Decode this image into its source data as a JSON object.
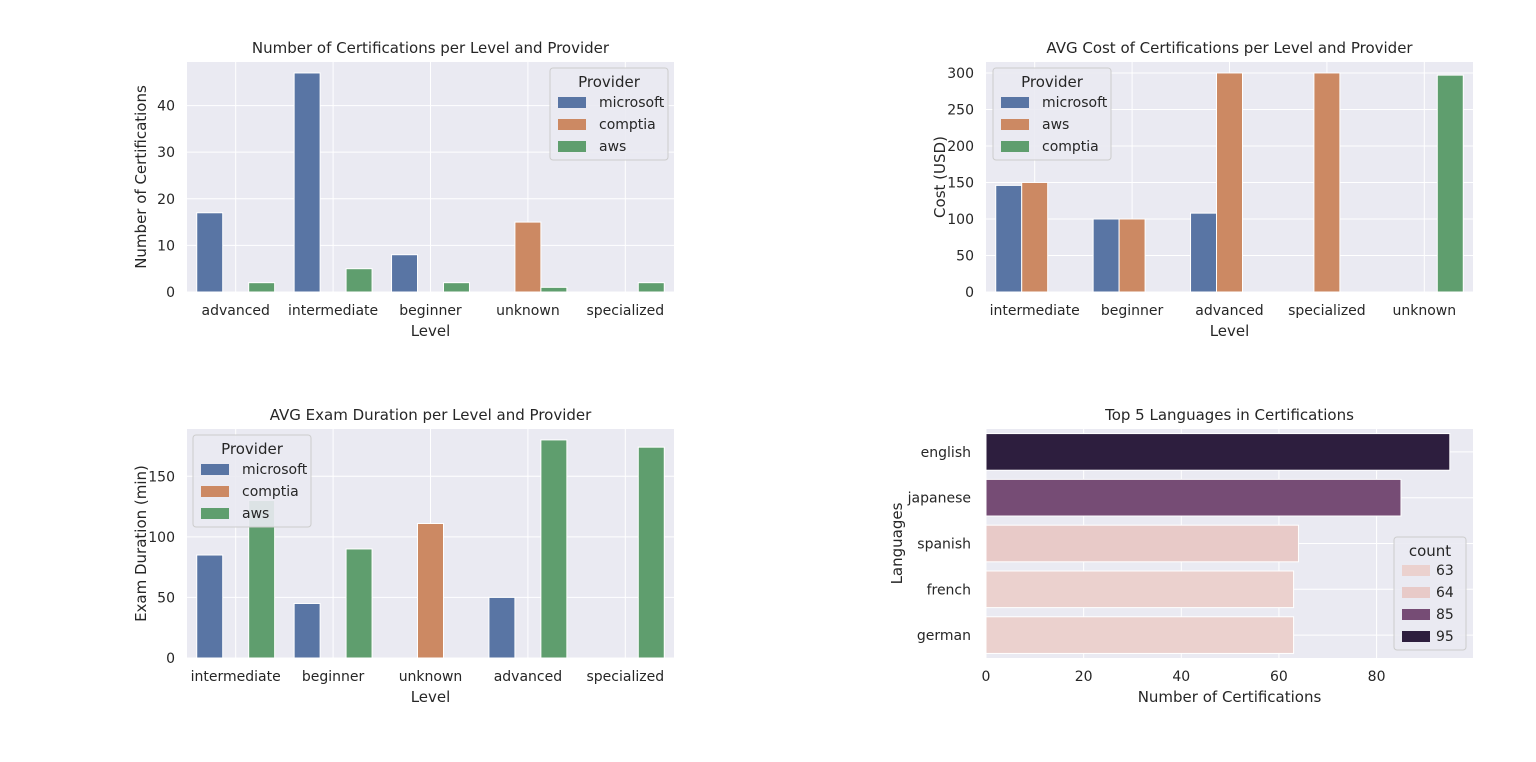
{
  "colors": {
    "panel_bg": "#EAEAF2",
    "grid": "#FFFFFF",
    "microsoft": "#5975A4",
    "comptia": "#CC8963",
    "aws": "#5F9E6E",
    "legend_bg": "#EAEAF2",
    "legend_border": "#CCCCCC"
  },
  "chart_data": [
    {
      "type": "bar",
      "title": "Number of Certifications per Level and Provider",
      "xlabel": "Level",
      "ylabel": "Number of Certifications",
      "categories": [
        "advanced",
        "intermediate",
        "beginner",
        "unknown",
        "specialized"
      ],
      "series": [
        {
          "name": "microsoft",
          "color_key": "microsoft",
          "values": [
            17,
            47,
            8,
            0,
            0
          ]
        },
        {
          "name": "comptia",
          "color_key": "comptia",
          "values": [
            0,
            0,
            0,
            15,
            0
          ]
        },
        {
          "name": "aws",
          "color_key": "aws",
          "values": [
            2,
            5,
            2,
            1,
            2
          ]
        }
      ],
      "ylim": [
        0,
        49.35
      ],
      "yticks": [
        0,
        10,
        20,
        30,
        40
      ],
      "legend_title": "Provider",
      "legend_position": "top-right",
      "grid": true
    },
    {
      "type": "bar",
      "title": "AVG Cost of Certifications per Level and Provider",
      "xlabel": "Level",
      "ylabel": "Cost (USD)",
      "categories": [
        "intermediate",
        "beginner",
        "advanced",
        "specialized",
        "unknown"
      ],
      "series": [
        {
          "name": "microsoft",
          "color_key": "microsoft",
          "values": [
            146,
            100,
            108,
            0,
            0
          ]
        },
        {
          "name": "aws",
          "color_key": "comptia",
          "values": [
            150,
            100,
            300,
            300,
            0
          ]
        },
        {
          "name": "comptia",
          "color_key": "aws",
          "values": [
            0,
            0,
            0,
            0,
            297
          ]
        }
      ],
      "ylim": [
        0,
        315
      ],
      "yticks": [
        0,
        50,
        100,
        150,
        200,
        250,
        300
      ],
      "legend_title": "Provider",
      "legend_position": "top-left",
      "grid": true
    },
    {
      "type": "bar",
      "title": "AVG Exam Duration per Level and Provider",
      "xlabel": "Level",
      "ylabel": "Exam Duration (min)",
      "categories": [
        "intermediate",
        "beginner",
        "unknown",
        "advanced",
        "specialized"
      ],
      "series": [
        {
          "name": "microsoft",
          "color_key": "microsoft",
          "values": [
            85,
            45,
            0,
            50,
            0
          ]
        },
        {
          "name": "comptia",
          "color_key": "comptia",
          "values": [
            0,
            0,
            111,
            0,
            0
          ]
        },
        {
          "name": "aws",
          "color_key": "aws",
          "values": [
            130,
            90,
            0,
            180,
            174
          ]
        }
      ],
      "ylim": [
        0,
        189
      ],
      "yticks": [
        0,
        50,
        100,
        150
      ],
      "legend_title": "Provider",
      "legend_position": "top-left",
      "grid": true
    },
    {
      "type": "bar",
      "orientation": "horizontal",
      "title": "Top 5 Languages in Certifications",
      "xlabel": "Number of Certifications",
      "ylabel": "Languages",
      "categories": [
        "english",
        "japanese",
        "spanish",
        "french",
        "german"
      ],
      "values": [
        95,
        85,
        64,
        63,
        63
      ],
      "bar_colors": [
        "#2D1E3E",
        "#764C75",
        "#E8CAC8",
        "#EBD1CE",
        "#EBD1CE"
      ],
      "xlim": [
        0,
        99.75
      ],
      "xticks": [
        0,
        20,
        40,
        60,
        80
      ],
      "legend_title": "count",
      "legend_position": "right",
      "legend_entries": [
        {
          "label": "63",
          "color": "#EBD1CE"
        },
        {
          "label": "64",
          "color": "#E8CAC8"
        },
        {
          "label": "85",
          "color": "#764C75"
        },
        {
          "label": "95",
          "color": "#2D1E3E"
        }
      ],
      "grid": true
    }
  ]
}
